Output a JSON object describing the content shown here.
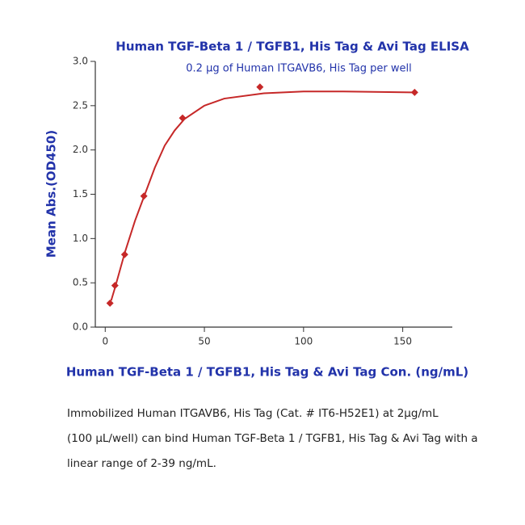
{
  "chart_data": {
    "type": "scatter",
    "title": "Human TGF-Beta 1 / TGFB1, His Tag & Avi Tag ELISA",
    "subtitle": "0.2 μg of Human ITGAVB6, His Tag per well",
    "xlabel": "Human TGF-Beta 1 / TGFB1, His Tag & Avi Tag Con. (ng/mL)",
    "ylabel": "Mean Abs.(OD450)",
    "x": [
      2.4,
      4.9,
      9.8,
      19.5,
      39,
      78,
      156
    ],
    "values": [
      0.27,
      0.47,
      0.82,
      1.48,
      2.36,
      2.71,
      2.65
    ],
    "color": "#c62828",
    "curve": {
      "x": [
        3,
        5,
        10,
        15,
        20,
        25,
        30,
        35,
        40,
        50,
        60,
        80,
        100,
        120,
        156
      ],
      "y": [
        0.3,
        0.45,
        0.85,
        1.2,
        1.5,
        1.8,
        2.05,
        2.22,
        2.35,
        2.5,
        2.58,
        2.64,
        2.66,
        2.66,
        2.65
      ]
    },
    "xlim": [
      -5,
      175
    ],
    "ylim": [
      0,
      3.0
    ],
    "xticks": [
      0,
      50,
      100,
      150
    ],
    "yticks": [
      {
        "value": 0,
        "label": "0.0"
      },
      0.5,
      {
        "value": 1,
        "label": "1.0"
      },
      1.5,
      {
        "value": 2,
        "label": "2.0"
      },
      2.5,
      {
        "value": 3,
        "label": "3.0"
      }
    ]
  },
  "caption": [
    "Immobilized Human ITGAVB6, His Tag (Cat. # IT6-H52E1) at 2μg/mL",
    "(100 μL/well) can bind Human TGF-Beta 1 / TGFB1, His Tag & Avi Tag with a",
    "linear range of 2-39 ng/mL."
  ]
}
